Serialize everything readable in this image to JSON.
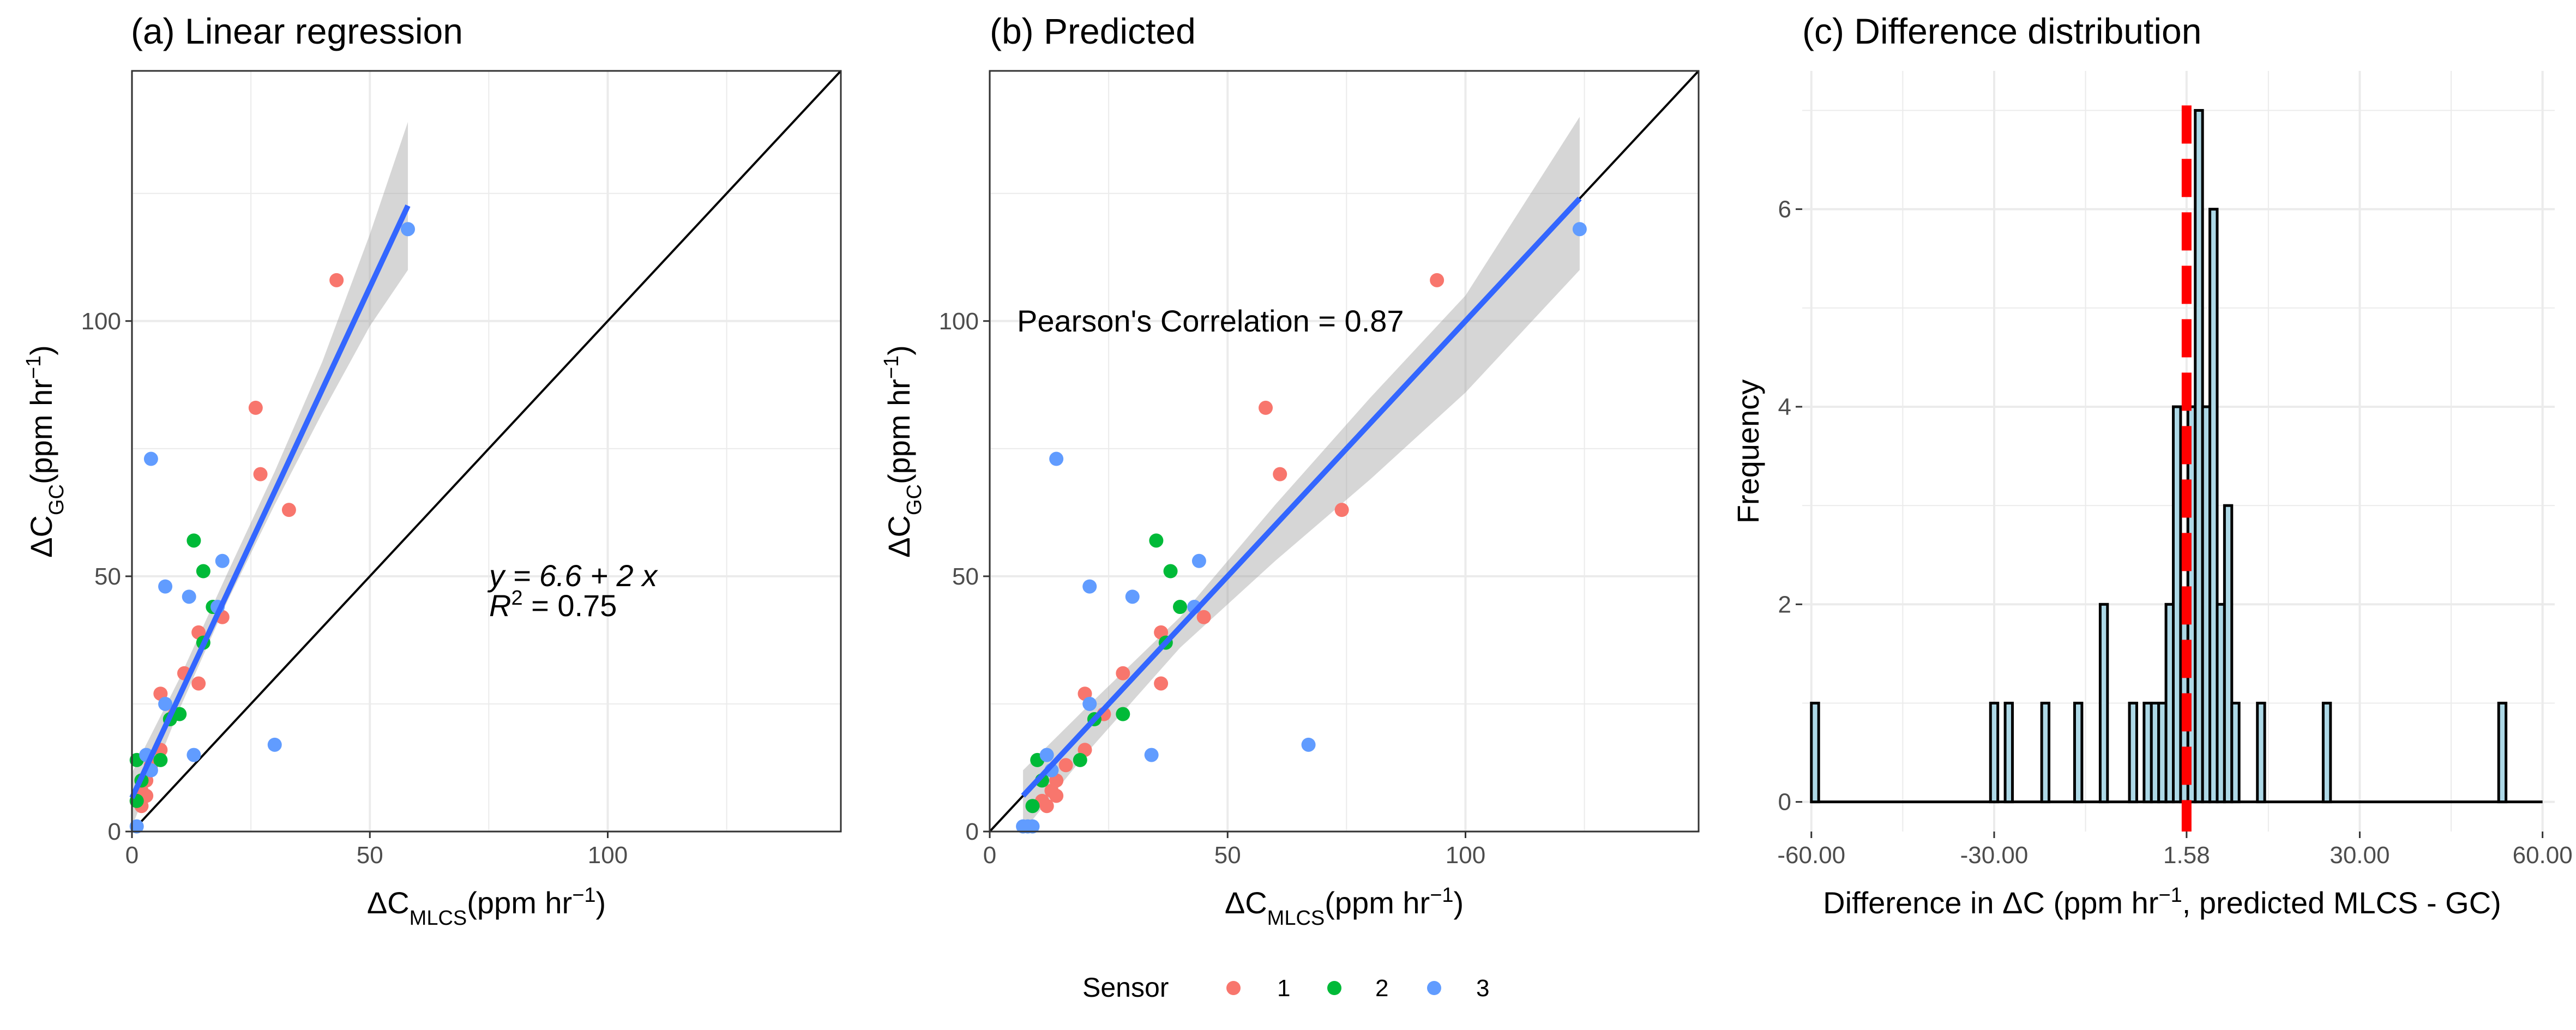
{
  "colors": {
    "sensor1": "#F8766D",
    "sensor2": "#00BA38",
    "sensor3": "#619CFF",
    "fit_line": "#3366FF",
    "ci_band": "#999999",
    "identity_line": "#000000",
    "hist_fill": "#ADD8E6",
    "hist_stroke": "#000000",
    "mean_line": "#FF0000",
    "grid": "#EBEBEB"
  },
  "legend": {
    "title": "Sensor",
    "labels": [
      "1",
      "2",
      "3"
    ]
  },
  "chart_data": [
    {
      "type": "scatter",
      "title": "(a) Linear regression",
      "xlabel_main": "ΔC",
      "xlabel_sub": "MLCS",
      "xlabel_unit": "(ppm hr",
      "xlabel_sup": "−1",
      "xlabel_close": ")",
      "ylabel_main": "ΔC",
      "ylabel_sub": "GC",
      "ylabel_unit": "(ppm hr",
      "ylabel_sup": "−1",
      "ylabel_close": ")",
      "xlim": [
        0,
        149
      ],
      "ylim": [
        0,
        149
      ],
      "xticks": [
        0,
        50,
        100
      ],
      "yticks": [
        0,
        50,
        100
      ],
      "identity_line": true,
      "fit": {
        "intercept": 6.6,
        "slope": 2,
        "x_range": [
          0,
          58
        ]
      },
      "ci_band": [
        [
          0,
          1.0,
          11.5
        ],
        [
          10,
          24,
          30
        ],
        [
          20,
          45,
          50.5
        ],
        [
          30,
          64,
          70.5
        ],
        [
          40,
          82,
          92
        ],
        [
          50,
          99,
          117
        ],
        [
          58,
          110,
          139
        ]
      ],
      "equation_line1": "y = 6.6 + 2 x",
      "r2_label": "R",
      "r2_sup": "2",
      "r2_value": " = 0.75",
      "points": [
        {
          "x": 43,
          "y": 108,
          "s": 1
        },
        {
          "x": 26,
          "y": 83,
          "s": 1
        },
        {
          "x": 27,
          "y": 70,
          "s": 1
        },
        {
          "x": 33,
          "y": 63,
          "s": 1
        },
        {
          "x": 19,
          "y": 42,
          "s": 1
        },
        {
          "x": 14,
          "y": 39,
          "s": 1
        },
        {
          "x": 11,
          "y": 31,
          "s": 1
        },
        {
          "x": 14,
          "y": 29,
          "s": 1
        },
        {
          "x": 6,
          "y": 27,
          "s": 1
        },
        {
          "x": 9,
          "y": 23,
          "s": 1
        },
        {
          "x": 6,
          "y": 16,
          "s": 1
        },
        {
          "x": 4,
          "y": 13,
          "s": 1
        },
        {
          "x": 3,
          "y": 10,
          "s": 1
        },
        {
          "x": 2,
          "y": 8,
          "s": 1
        },
        {
          "x": 3,
          "y": 7,
          "s": 1
        },
        {
          "x": 1,
          "y": 6,
          "s": 1
        },
        {
          "x": 2,
          "y": 5,
          "s": 1
        },
        {
          "x": 13,
          "y": 57,
          "s": 2
        },
        {
          "x": 15,
          "y": 51,
          "s": 2
        },
        {
          "x": 17,
          "y": 44,
          "s": 2
        },
        {
          "x": 15,
          "y": 37,
          "s": 2
        },
        {
          "x": 10,
          "y": 23,
          "s": 2
        },
        {
          "x": 8,
          "y": 22,
          "s": 2
        },
        {
          "x": 6,
          "y": 14,
          "s": 2
        },
        {
          "x": 1,
          "y": 14,
          "s": 2
        },
        {
          "x": 2,
          "y": 10,
          "s": 2
        },
        {
          "x": 1,
          "y": 6,
          "s": 2
        },
        {
          "x": 58,
          "y": 118,
          "s": 3
        },
        {
          "x": 4,
          "y": 73,
          "s": 3
        },
        {
          "x": 19,
          "y": 53,
          "s": 3
        },
        {
          "x": 7,
          "y": 48,
          "s": 3
        },
        {
          "x": 12,
          "y": 46,
          "s": 3
        },
        {
          "x": 18,
          "y": 44,
          "s": 3
        },
        {
          "x": 7,
          "y": 25,
          "s": 3
        },
        {
          "x": 30,
          "y": 17,
          "s": 3
        },
        {
          "x": 13,
          "y": 15,
          "s": 3
        },
        {
          "x": 3,
          "y": 15,
          "s": 3
        },
        {
          "x": 4,
          "y": 12,
          "s": 3
        },
        {
          "x": 1,
          "y": 1,
          "s": 3
        }
      ]
    },
    {
      "type": "scatter",
      "title": "(b) Predicted",
      "xlabel_main": "ΔC",
      "xlabel_sub": "MLCS",
      "xlabel_unit": "(ppm hr",
      "xlabel_sup": "−1",
      "xlabel_close": ")",
      "ylabel_main": "ΔC",
      "ylabel_sub": "GC",
      "ylabel_unit": "(ppm hr",
      "ylabel_sup": "−1",
      "ylabel_close": ")",
      "xlim": [
        0,
        149
      ],
      "ylim": [
        0,
        149
      ],
      "xticks": [
        0,
        50,
        100
      ],
      "yticks": [
        0,
        50,
        100
      ],
      "identity_line": true,
      "fit": {
        "intercept": 0,
        "slope": 1,
        "x_range": [
          7,
          124
        ]
      },
      "ci_band": [
        [
          7,
          0,
          12
        ],
        [
          20,
          15,
          24
        ],
        [
          40,
          36,
          42
        ],
        [
          60,
          53,
          64
        ],
        [
          80,
          69,
          85
        ],
        [
          100,
          86,
          105
        ],
        [
          124,
          110,
          140
        ]
      ],
      "annotation": "Pearson's Correlation = 0.87",
      "points": [
        {
          "x": 94,
          "y": 108,
          "s": 1
        },
        {
          "x": 58,
          "y": 83,
          "s": 1
        },
        {
          "x": 61,
          "y": 70,
          "s": 1
        },
        {
          "x": 74,
          "y": 63,
          "s": 1
        },
        {
          "x": 45,
          "y": 42,
          "s": 1
        },
        {
          "x": 36,
          "y": 39,
          "s": 1
        },
        {
          "x": 28,
          "y": 31,
          "s": 1
        },
        {
          "x": 36,
          "y": 29,
          "s": 1
        },
        {
          "x": 20,
          "y": 27,
          "s": 1
        },
        {
          "x": 24,
          "y": 23,
          "s": 1
        },
        {
          "x": 20,
          "y": 16,
          "s": 1
        },
        {
          "x": 16,
          "y": 13,
          "s": 1
        },
        {
          "x": 14,
          "y": 10,
          "s": 1
        },
        {
          "x": 13,
          "y": 8,
          "s": 1
        },
        {
          "x": 14,
          "y": 7,
          "s": 1
        },
        {
          "x": 11,
          "y": 6,
          "s": 1
        },
        {
          "x": 12,
          "y": 5,
          "s": 1
        },
        {
          "x": 35,
          "y": 57,
          "s": 2
        },
        {
          "x": 38,
          "y": 51,
          "s": 2
        },
        {
          "x": 40,
          "y": 44,
          "s": 2
        },
        {
          "x": 37,
          "y": 37,
          "s": 2
        },
        {
          "x": 28,
          "y": 23,
          "s": 2
        },
        {
          "x": 22,
          "y": 22,
          "s": 2
        },
        {
          "x": 19,
          "y": 14,
          "s": 2
        },
        {
          "x": 10,
          "y": 14,
          "s": 2
        },
        {
          "x": 11,
          "y": 10,
          "s": 2
        },
        {
          "x": 9,
          "y": 5,
          "s": 2
        },
        {
          "x": 124,
          "y": 118,
          "s": 3
        },
        {
          "x": 14,
          "y": 73,
          "s": 3
        },
        {
          "x": 44,
          "y": 53,
          "s": 3
        },
        {
          "x": 21,
          "y": 48,
          "s": 3
        },
        {
          "x": 30,
          "y": 46,
          "s": 3
        },
        {
          "x": 43,
          "y": 44,
          "s": 3
        },
        {
          "x": 21,
          "y": 25,
          "s": 3
        },
        {
          "x": 67,
          "y": 17,
          "s": 3
        },
        {
          "x": 34,
          "y": 15,
          "s": 3
        },
        {
          "x": 12,
          "y": 15,
          "s": 3
        },
        {
          "x": 13,
          "y": 12,
          "s": 3
        },
        {
          "x": 8,
          "y": 1,
          "s": 3
        },
        {
          "x": 9,
          "y": 1,
          "s": 3
        },
        {
          "x": 7,
          "y": 1,
          "s": 3
        }
      ]
    },
    {
      "type": "histogram",
      "title": "(c) Difference distribution",
      "xlabel_pre": "Difference in ΔC (ppm hr",
      "xlabel_sup": "−1",
      "xlabel_post": ", predicted MLCS - GC)",
      "ylabel": "Frequency",
      "xlim": [
        -61.5,
        62
      ],
      "ylim": [
        -0.3,
        7.4
      ],
      "xticks": [
        -60,
        -30,
        1.58,
        30,
        60
      ],
      "xtick_labels": [
        "-60.00",
        "-30.00",
        "1.58",
        "30.00",
        "60.00"
      ],
      "yticks": [
        0,
        2,
        4,
        6
      ],
      "bin_width": 1.2,
      "mean": 1.58,
      "bins": [
        {
          "x": -60.0,
          "count": 1
        },
        {
          "x": -30.6,
          "count": 1
        },
        {
          "x": -28.2,
          "count": 1
        },
        {
          "x": -22.2,
          "count": 1
        },
        {
          "x": -16.8,
          "count": 1
        },
        {
          "x": -12.6,
          "count": 2
        },
        {
          "x": -7.8,
          "count": 1
        },
        {
          "x": -5.4,
          "count": 1
        },
        {
          "x": -4.2,
          "count": 1
        },
        {
          "x": -3.0,
          "count": 1
        },
        {
          "x": -1.8,
          "count": 2
        },
        {
          "x": -0.6,
          "count": 4
        },
        {
          "x": 0.6,
          "count": 2
        },
        {
          "x": 1.8,
          "count": 4
        },
        {
          "x": 3.0,
          "count": 7
        },
        {
          "x": 4.2,
          "count": 4
        },
        {
          "x": 5.4,
          "count": 6
        },
        {
          "x": 6.6,
          "count": 2
        },
        {
          "x": 7.8,
          "count": 3
        },
        {
          "x": 9.0,
          "count": 1
        },
        {
          "x": 13.2,
          "count": 1
        },
        {
          "x": 24.0,
          "count": 1
        },
        {
          "x": 52.8,
          "count": 1
        }
      ]
    }
  ]
}
